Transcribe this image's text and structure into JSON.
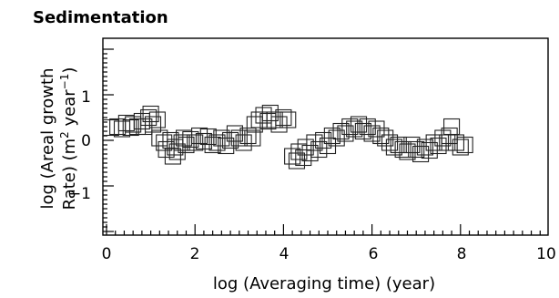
{
  "chart_data": {
    "type": "scatter",
    "title": "Sedimentation",
    "xlabel": "log (Averaging time) (year)",
    "ylabel_line1": "log (Areal growth",
    "ylabel_line2_prefix": "Rate) (m",
    "ylabel_sup1": "2",
    "ylabel_line2_mid": " year",
    "ylabel_sup2": "−1",
    "ylabel_line2_suffix": ")",
    "xlim": [
      0,
      10
    ],
    "ylim": [
      -2,
      2
    ],
    "x_ticks": [
      "0",
      "2",
      "4",
      "6",
      "8",
      "10"
    ],
    "y_ticks": [
      "1",
      "0",
      "−1"
    ],
    "marker": "open-square",
    "points": [
      [
        0.1,
        0.28
      ],
      [
        0.25,
        0.3
      ],
      [
        0.35,
        0.25
      ],
      [
        0.45,
        0.38
      ],
      [
        0.55,
        0.28
      ],
      [
        0.6,
        0.35
      ],
      [
        0.7,
        0.3
      ],
      [
        0.8,
        0.42
      ],
      [
        0.85,
        0.3
      ],
      [
        0.95,
        0.5
      ],
      [
        1.0,
        0.58
      ],
      [
        1.05,
        0.35
      ],
      [
        1.15,
        0.45
      ],
      [
        1.2,
        0.05
      ],
      [
        1.3,
        -0.05
      ],
      [
        1.35,
        -0.2
      ],
      [
        1.45,
        0.0
      ],
      [
        1.5,
        -0.35
      ],
      [
        1.55,
        -0.15
      ],
      [
        1.6,
        -0.25
      ],
      [
        1.7,
        -0.05
      ],
      [
        1.75,
        0.05
      ],
      [
        1.8,
        -0.1
      ],
      [
        1.9,
        0.02
      ],
      [
        2.0,
        -0.05
      ],
      [
        2.1,
        0.1
      ],
      [
        2.2,
        -0.02
      ],
      [
        2.3,
        0.08
      ],
      [
        2.4,
        -0.1
      ],
      [
        2.5,
        -0.05
      ],
      [
        2.6,
        0.05
      ],
      [
        2.7,
        -0.12
      ],
      [
        2.8,
        0.0
      ],
      [
        2.9,
        0.15
      ],
      [
        3.0,
        0.05
      ],
      [
        3.1,
        -0.05
      ],
      [
        3.2,
        0.1
      ],
      [
        3.3,
        0.05
      ],
      [
        3.35,
        0.35
      ],
      [
        3.45,
        0.45
      ],
      [
        3.55,
        0.55
      ],
      [
        3.65,
        0.42
      ],
      [
        3.7,
        0.6
      ],
      [
        3.8,
        0.45
      ],
      [
        3.9,
        0.35
      ],
      [
        4.0,
        0.5
      ],
      [
        4.1,
        0.45
      ],
      [
        4.2,
        -0.35
      ],
      [
        4.3,
        -0.45
      ],
      [
        4.35,
        -0.25
      ],
      [
        4.45,
        -0.38
      ],
      [
        4.5,
        -0.15
      ],
      [
        4.6,
        -0.28
      ],
      [
        4.7,
        -0.05
      ],
      [
        4.8,
        -0.2
      ],
      [
        4.9,
        0.0
      ],
      [
        5.0,
        -0.12
      ],
      [
        5.1,
        0.1
      ],
      [
        5.2,
        0.05
      ],
      [
        5.3,
        0.2
      ],
      [
        5.4,
        0.15
      ],
      [
        5.5,
        0.3
      ],
      [
        5.6,
        0.25
      ],
      [
        5.7,
        0.35
      ],
      [
        5.8,
        0.2
      ],
      [
        5.9,
        0.3
      ],
      [
        6.0,
        0.15
      ],
      [
        6.1,
        0.25
      ],
      [
        6.2,
        0.1
      ],
      [
        6.3,
        0.05
      ],
      [
        6.4,
        -0.05
      ],
      [
        6.5,
        -0.15
      ],
      [
        6.6,
        -0.1
      ],
      [
        6.7,
        -0.2
      ],
      [
        6.8,
        -0.25
      ],
      [
        6.9,
        -0.1
      ],
      [
        7.0,
        -0.2
      ],
      [
        7.1,
        -0.3
      ],
      [
        7.2,
        -0.15
      ],
      [
        7.3,
        -0.22
      ],
      [
        7.4,
        -0.05
      ],
      [
        7.5,
        -0.12
      ],
      [
        7.6,
        0.05
      ],
      [
        7.7,
        -0.05
      ],
      [
        7.75,
        0.1
      ],
      [
        7.8,
        0.3
      ],
      [
        7.9,
        -0.05
      ],
      [
        8.0,
        -0.15
      ],
      [
        8.1,
        -0.1
      ]
    ]
  }
}
